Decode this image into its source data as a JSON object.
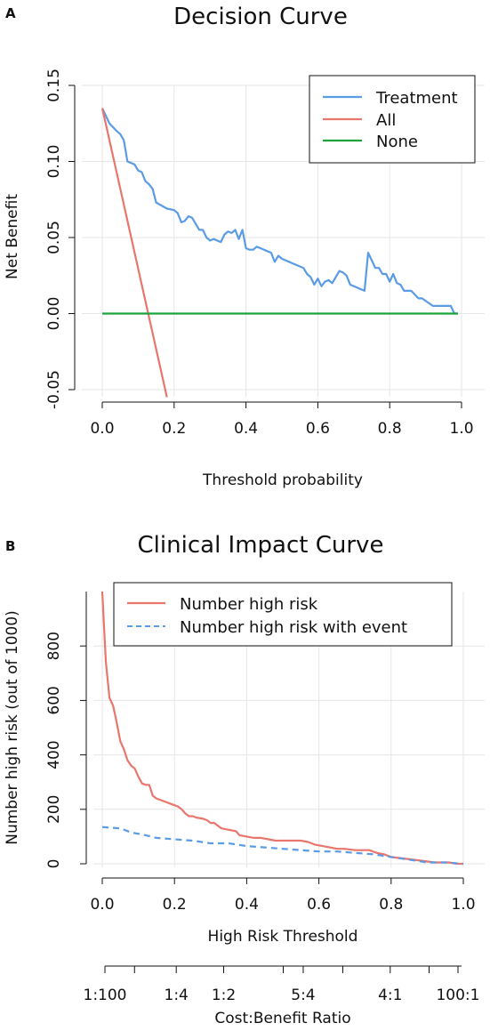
{
  "panels": {
    "a": {
      "letter": "A"
    },
    "b": {
      "letter": "B"
    }
  },
  "chart_data": [
    {
      "type": "line",
      "title": "Decision Curve",
      "xlabel": "Threshold probability",
      "ylabel": "Net Benefit",
      "xlim": [
        0,
        1
      ],
      "ylim": [
        -0.05,
        0.15
      ],
      "xticks": [
        "0.0",
        "0.2",
        "0.4",
        "0.6",
        "0.8",
        "1.0"
      ],
      "yticks": [
        "-0.05",
        "0.00",
        "0.05",
        "0.10",
        "0.15"
      ],
      "grid": true,
      "legend_position": "top-right",
      "series": [
        {
          "name": "Treatment",
          "color": "#5a9be6",
          "x": [
            0.0,
            0.02,
            0.04,
            0.05,
            0.06,
            0.07,
            0.09,
            0.1,
            0.11,
            0.12,
            0.13,
            0.14,
            0.15,
            0.18,
            0.2,
            0.21,
            0.22,
            0.23,
            0.24,
            0.25,
            0.27,
            0.28,
            0.29,
            0.3,
            0.31,
            0.33,
            0.34,
            0.35,
            0.36,
            0.37,
            0.38,
            0.39,
            0.4,
            0.41,
            0.42,
            0.43,
            0.44,
            0.46,
            0.47,
            0.48,
            0.49,
            0.5,
            0.53,
            0.55,
            0.56,
            0.57,
            0.58,
            0.59,
            0.6,
            0.61,
            0.62,
            0.63,
            0.64,
            0.66,
            0.67,
            0.68,
            0.69,
            0.71,
            0.73,
            0.74,
            0.75,
            0.76,
            0.77,
            0.78,
            0.79,
            0.8,
            0.81,
            0.82,
            0.83,
            0.84,
            0.85,
            0.86,
            0.88,
            0.89,
            0.92,
            0.94,
            0.97,
            0.98,
            0.99
          ],
          "y": [
            0.135,
            0.125,
            0.12,
            0.118,
            0.114,
            0.1,
            0.098,
            0.094,
            0.093,
            0.087,
            0.085,
            0.082,
            0.073,
            0.069,
            0.068,
            0.066,
            0.06,
            0.061,
            0.064,
            0.063,
            0.055,
            0.055,
            0.05,
            0.048,
            0.049,
            0.047,
            0.052,
            0.054,
            0.053,
            0.055,
            0.049,
            0.055,
            0.043,
            0.042,
            0.042,
            0.044,
            0.043,
            0.041,
            0.04,
            0.034,
            0.038,
            0.036,
            0.033,
            0.031,
            0.03,
            0.026,
            0.024,
            0.019,
            0.023,
            0.018,
            0.021,
            0.022,
            0.02,
            0.028,
            0.027,
            0.025,
            0.019,
            0.017,
            0.015,
            0.04,
            0.035,
            0.03,
            0.03,
            0.026,
            0.026,
            0.021,
            0.026,
            0.02,
            0.019,
            0.015,
            0.015,
            0.015,
            0.01,
            0.01,
            0.005,
            0.005,
            0.005,
            0.0,
            0.0
          ]
        },
        {
          "name": "All",
          "color": "#e8766c",
          "x": [
            0.0,
            0.18
          ],
          "y": [
            0.135,
            -0.055
          ]
        },
        {
          "name": "None",
          "color": "#1da33a",
          "x": [
            0.0,
            0.99
          ],
          "y": [
            0.0,
            0.0
          ]
        }
      ]
    },
    {
      "type": "line",
      "title": "Clinical Impact Curve",
      "xlabel": "High Risk Threshold",
      "ylabel": "Number high risk (out of 1000)",
      "xlim": [
        0,
        1
      ],
      "ylim": [
        0,
        1000
      ],
      "xticks": [
        "0.0",
        "0.2",
        "0.4",
        "0.6",
        "0.8",
        "1.0"
      ],
      "yticks": [
        "0",
        "200",
        "400",
        "600",
        "800"
      ],
      "grid": true,
      "legend_position": "top-right",
      "secondary_axis": {
        "label": "Cost:Benefit Ratio",
        "tick_labels": [
          "1:100",
          "1:4",
          "1:2",
          "5:4",
          "4:1",
          "100:1"
        ],
        "tick_label_positions": [
          0.0,
          0.2,
          0.333,
          0.556,
          0.8,
          0.99
        ],
        "tick_positions": [
          0.0,
          0.083,
          0.2,
          0.333,
          0.5,
          0.556,
          0.667,
          0.8,
          0.909,
          0.99
        ]
      },
      "series": [
        {
          "name": "Number high risk",
          "color": "#e8766c",
          "dash": "solid",
          "x": [
            0.0,
            0.005,
            0.01,
            0.02,
            0.03,
            0.04,
            0.05,
            0.06,
            0.07,
            0.08,
            0.09,
            0.1,
            0.11,
            0.12,
            0.13,
            0.14,
            0.15,
            0.17,
            0.19,
            0.21,
            0.22,
            0.23,
            0.24,
            0.25,
            0.26,
            0.28,
            0.29,
            0.3,
            0.31,
            0.32,
            0.33,
            0.35,
            0.37,
            0.38,
            0.4,
            0.42,
            0.44,
            0.46,
            0.48,
            0.5,
            0.53,
            0.55,
            0.57,
            0.59,
            0.61,
            0.63,
            0.65,
            0.67,
            0.7,
            0.72,
            0.74,
            0.76,
            0.78,
            0.8,
            0.83,
            0.86,
            0.89,
            0.92,
            0.96,
            0.98,
            1.0
          ],
          "y": [
            1000,
            870,
            740,
            610,
            580,
            520,
            450,
            420,
            380,
            360,
            350,
            320,
            295,
            290,
            290,
            250,
            240,
            230,
            220,
            210,
            200,
            185,
            175,
            175,
            170,
            165,
            160,
            150,
            150,
            140,
            130,
            125,
            120,
            105,
            100,
            95,
            95,
            90,
            85,
            85,
            85,
            85,
            80,
            70,
            65,
            60,
            55,
            55,
            50,
            50,
            50,
            40,
            35,
            25,
            20,
            15,
            10,
            5,
            5,
            0,
            0
          ]
        },
        {
          "name": "Number high risk with event",
          "color": "#5a9be6",
          "dash": "dashed",
          "x": [
            0.0,
            0.05,
            0.08,
            0.12,
            0.15,
            0.2,
            0.25,
            0.3,
            0.35,
            0.4,
            0.45,
            0.5,
            0.55,
            0.6,
            0.65,
            0.7,
            0.75,
            0.8,
            0.85,
            0.9,
            0.95,
            1.0
          ],
          "y": [
            135,
            130,
            115,
            105,
            95,
            90,
            85,
            75,
            75,
            65,
            60,
            55,
            50,
            45,
            45,
            40,
            35,
            25,
            15,
            5,
            5,
            0
          ]
        }
      ]
    }
  ]
}
